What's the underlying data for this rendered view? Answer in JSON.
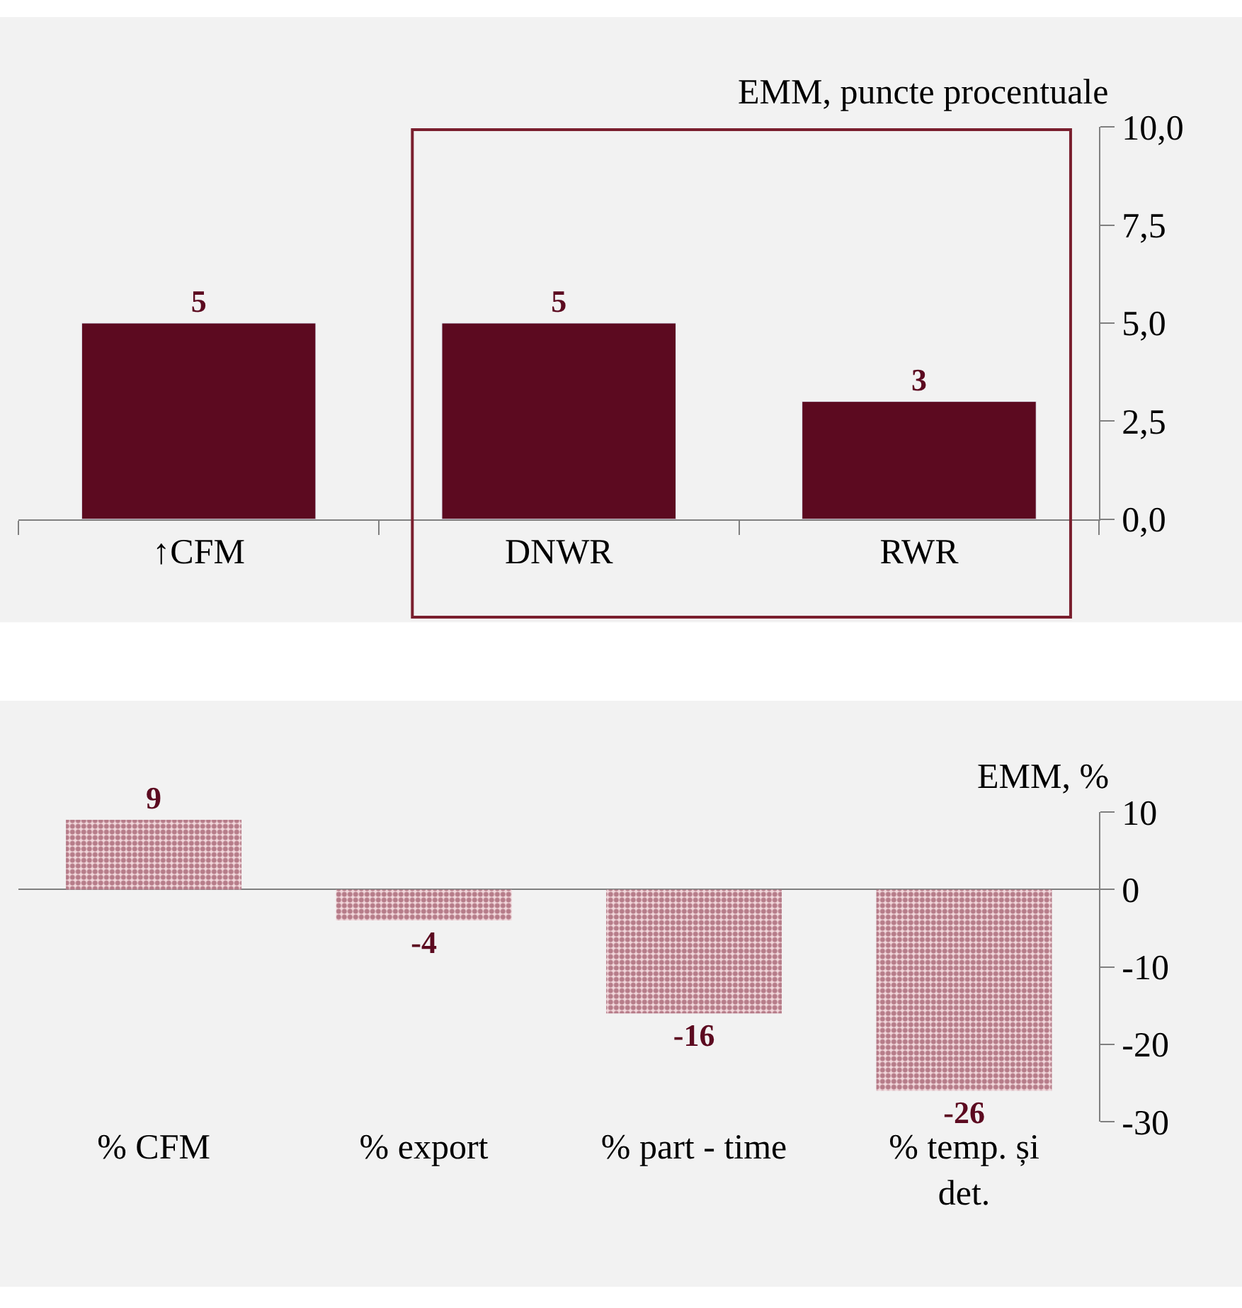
{
  "chart_data": [
    {
      "type": "bar",
      "ylabel": "EMM, puncte procentuale",
      "categories": [
        "↑CFM",
        "DNWR",
        "RWR"
      ],
      "series": [
        {
          "color": "#5c0a20",
          "values": [
            5,
            5,
            3
          ]
        }
      ],
      "ylim": [
        0,
        10
      ],
      "yticks": [
        {
          "value": 0,
          "label": "0,0"
        },
        {
          "value": 2.5,
          "label": "2,5"
        },
        {
          "value": 5,
          "label": "5,0"
        },
        {
          "value": 7.5,
          "label": "7,5"
        },
        {
          "value": 10,
          "label": "10,0"
        }
      ],
      "data_labels": true
    },
    {
      "type": "bar",
      "ylabel": "EMM, %",
      "categories": [
        "% CFM",
        "% export",
        "% part - time",
        "% temp. și det."
      ],
      "series": [
        {
          "color": "#7a2035",
          "values": [
            9,
            -4,
            -16,
            -26
          ]
        }
      ],
      "ylim": [
        -30,
        10
      ],
      "yticks": [
        -30,
        -20,
        -10,
        0,
        10
      ],
      "data_labels": true
    }
  ]
}
